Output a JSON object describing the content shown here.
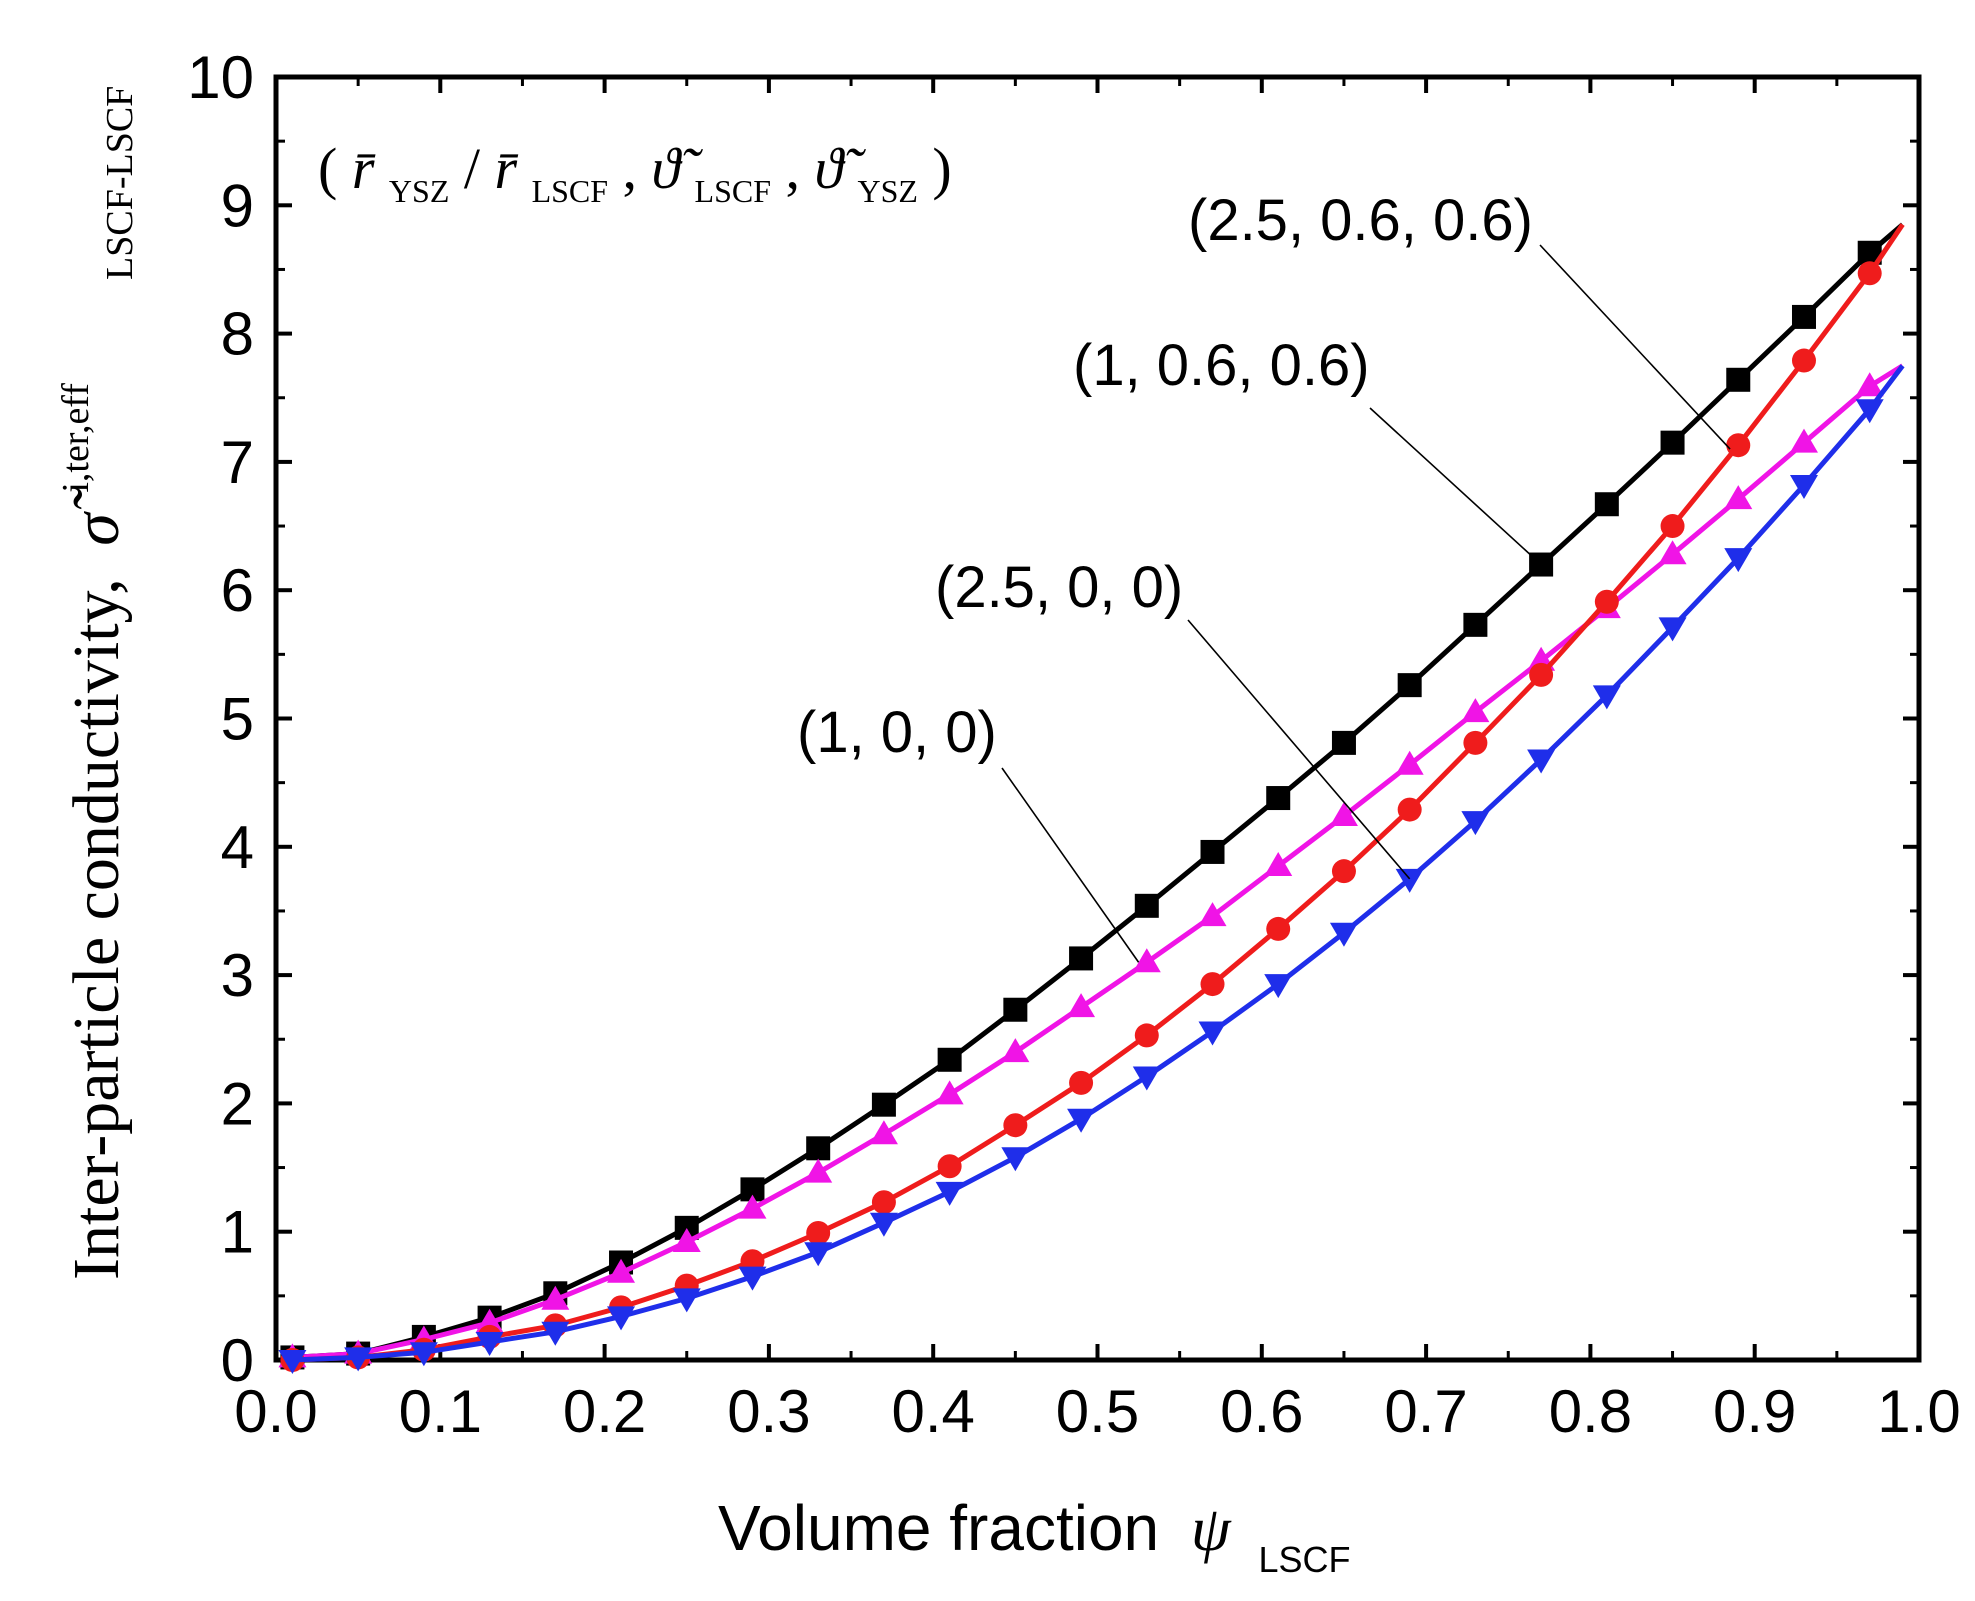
{
  "chart_data": {
    "type": "line",
    "xlabel": "Volume fraction",
    "xlabel_symbol": "ψ",
    "xlabel_subscript": "LSCF",
    "ylabel": "Inter-particle conductivity,",
    "ylabel_symbol": "σ̃",
    "ylabel_superscript": "i,ter,eff",
    "ylabel_subscript": "LSCF-LSCF",
    "xlim": [
      0.0,
      1.0
    ],
    "ylim": [
      0,
      10
    ],
    "x_ticks": [
      "0.0",
      "0.1",
      "0.2",
      "0.3",
      "0.4",
      "0.5",
      "0.6",
      "0.7",
      "0.8",
      "0.9",
      "1.0"
    ],
    "y_ticks": [
      "0",
      "1",
      "2",
      "3",
      "4",
      "5",
      "6",
      "7",
      "8",
      "9",
      "10"
    ],
    "parameter_note": {
      "open": "(",
      "r1": "r̄",
      "r1_sub": "YSZ",
      "slash": " / ",
      "r2": "r̄",
      "r2_sub": "LSCF",
      "sep1": ", ",
      "t1": "ϑ̃",
      "t1_sub": "LSCF",
      "sep2": ", ",
      "t2": "ϑ̃",
      "t2_sub": "YSZ",
      "close": ")"
    },
    "series": [
      {
        "name": "(2.5, 0.6, 0.6)",
        "color": "#ef1c1c",
        "marker": "circle",
        "x": [
          0.01,
          0.05,
          0.09,
          0.13,
          0.17,
          0.21,
          0.25,
          0.29,
          0.33,
          0.37,
          0.41,
          0.45,
          0.49,
          0.53,
          0.57,
          0.61,
          0.65,
          0.69,
          0.73,
          0.77,
          0.81,
          0.85,
          0.89,
          0.93,
          0.97
        ],
        "values": [
          0.0,
          0.02,
          0.08,
          0.18,
          0.27,
          0.41,
          0.58,
          0.77,
          0.99,
          1.23,
          1.51,
          1.83,
          2.16,
          2.53,
          2.93,
          3.36,
          3.81,
          4.29,
          4.81,
          5.34,
          5.91,
          6.5,
          7.13,
          7.79,
          8.47
        ]
      },
      {
        "name": "(1, 0.6, 0.6)",
        "color": "#000000",
        "marker": "square",
        "x": [
          0.01,
          0.05,
          0.09,
          0.13,
          0.17,
          0.21,
          0.25,
          0.29,
          0.33,
          0.37,
          0.41,
          0.45,
          0.49,
          0.53,
          0.57,
          0.61,
          0.65,
          0.69,
          0.73,
          0.77,
          0.81,
          0.85,
          0.89,
          0.93,
          0.97
        ],
        "values": [
          0.02,
          0.05,
          0.18,
          0.33,
          0.52,
          0.76,
          1.03,
          1.33,
          1.65,
          1.99,
          2.34,
          2.73,
          3.13,
          3.54,
          3.96,
          4.38,
          4.81,
          5.26,
          5.73,
          6.2,
          6.67,
          7.15,
          7.64,
          8.13,
          8.63
        ]
      },
      {
        "name": "(2.5, 0, 0)",
        "color": "#1f2eea",
        "marker": "triangle-down",
        "x": [
          0.01,
          0.05,
          0.09,
          0.13,
          0.17,
          0.21,
          0.25,
          0.29,
          0.33,
          0.37,
          0.41,
          0.45,
          0.49,
          0.53,
          0.57,
          0.61,
          0.65,
          0.69,
          0.73,
          0.77,
          0.81,
          0.85,
          0.89,
          0.93,
          0.97
        ],
        "values": [
          0.0,
          0.02,
          0.06,
          0.14,
          0.22,
          0.34,
          0.48,
          0.65,
          0.84,
          1.07,
          1.31,
          1.58,
          1.88,
          2.21,
          2.56,
          2.93,
          3.33,
          3.75,
          4.2,
          4.68,
          5.18,
          5.71,
          6.25,
          6.82,
          7.41
        ]
      },
      {
        "name": "(1, 0, 0)",
        "color": "#f014e6",
        "marker": "triangle-up",
        "x": [
          0.01,
          0.05,
          0.09,
          0.13,
          0.17,
          0.21,
          0.25,
          0.29,
          0.33,
          0.37,
          0.41,
          0.45,
          0.49,
          0.53,
          0.57,
          0.61,
          0.65,
          0.69,
          0.73,
          0.77,
          0.81,
          0.85,
          0.89,
          0.93,
          0.97
        ],
        "values": [
          0.02,
          0.05,
          0.16,
          0.29,
          0.47,
          0.68,
          0.92,
          1.18,
          1.46,
          1.76,
          2.07,
          2.4,
          2.75,
          3.1,
          3.46,
          3.85,
          4.24,
          4.64,
          5.05,
          5.45,
          5.86,
          6.28,
          6.71,
          7.15,
          7.59
        ]
      }
    ],
    "series_end": [
      {
        "x": 0.99,
        "y": 8.85
      },
      {
        "x": 0.99,
        "y": 8.85
      },
      {
        "x": 0.99,
        "y": 7.75
      },
      {
        "x": 0.99,
        "y": 7.75
      }
    ],
    "annotations": [
      {
        "text": "(2.5, 0.6, 0.6)",
        "target_x": 0.885,
        "target_y": 7.1
      },
      {
        "text": "(1, 0.6, 0.6)",
        "target_x": 0.77,
        "target_y": 6.2
      },
      {
        "text": "(2.5, 0, 0)",
        "target_x": 0.69,
        "target_y": 3.75
      },
      {
        "text": "(1, 0, 0)",
        "target_x": 0.525,
        "target_y": 3.1
      }
    ]
  }
}
